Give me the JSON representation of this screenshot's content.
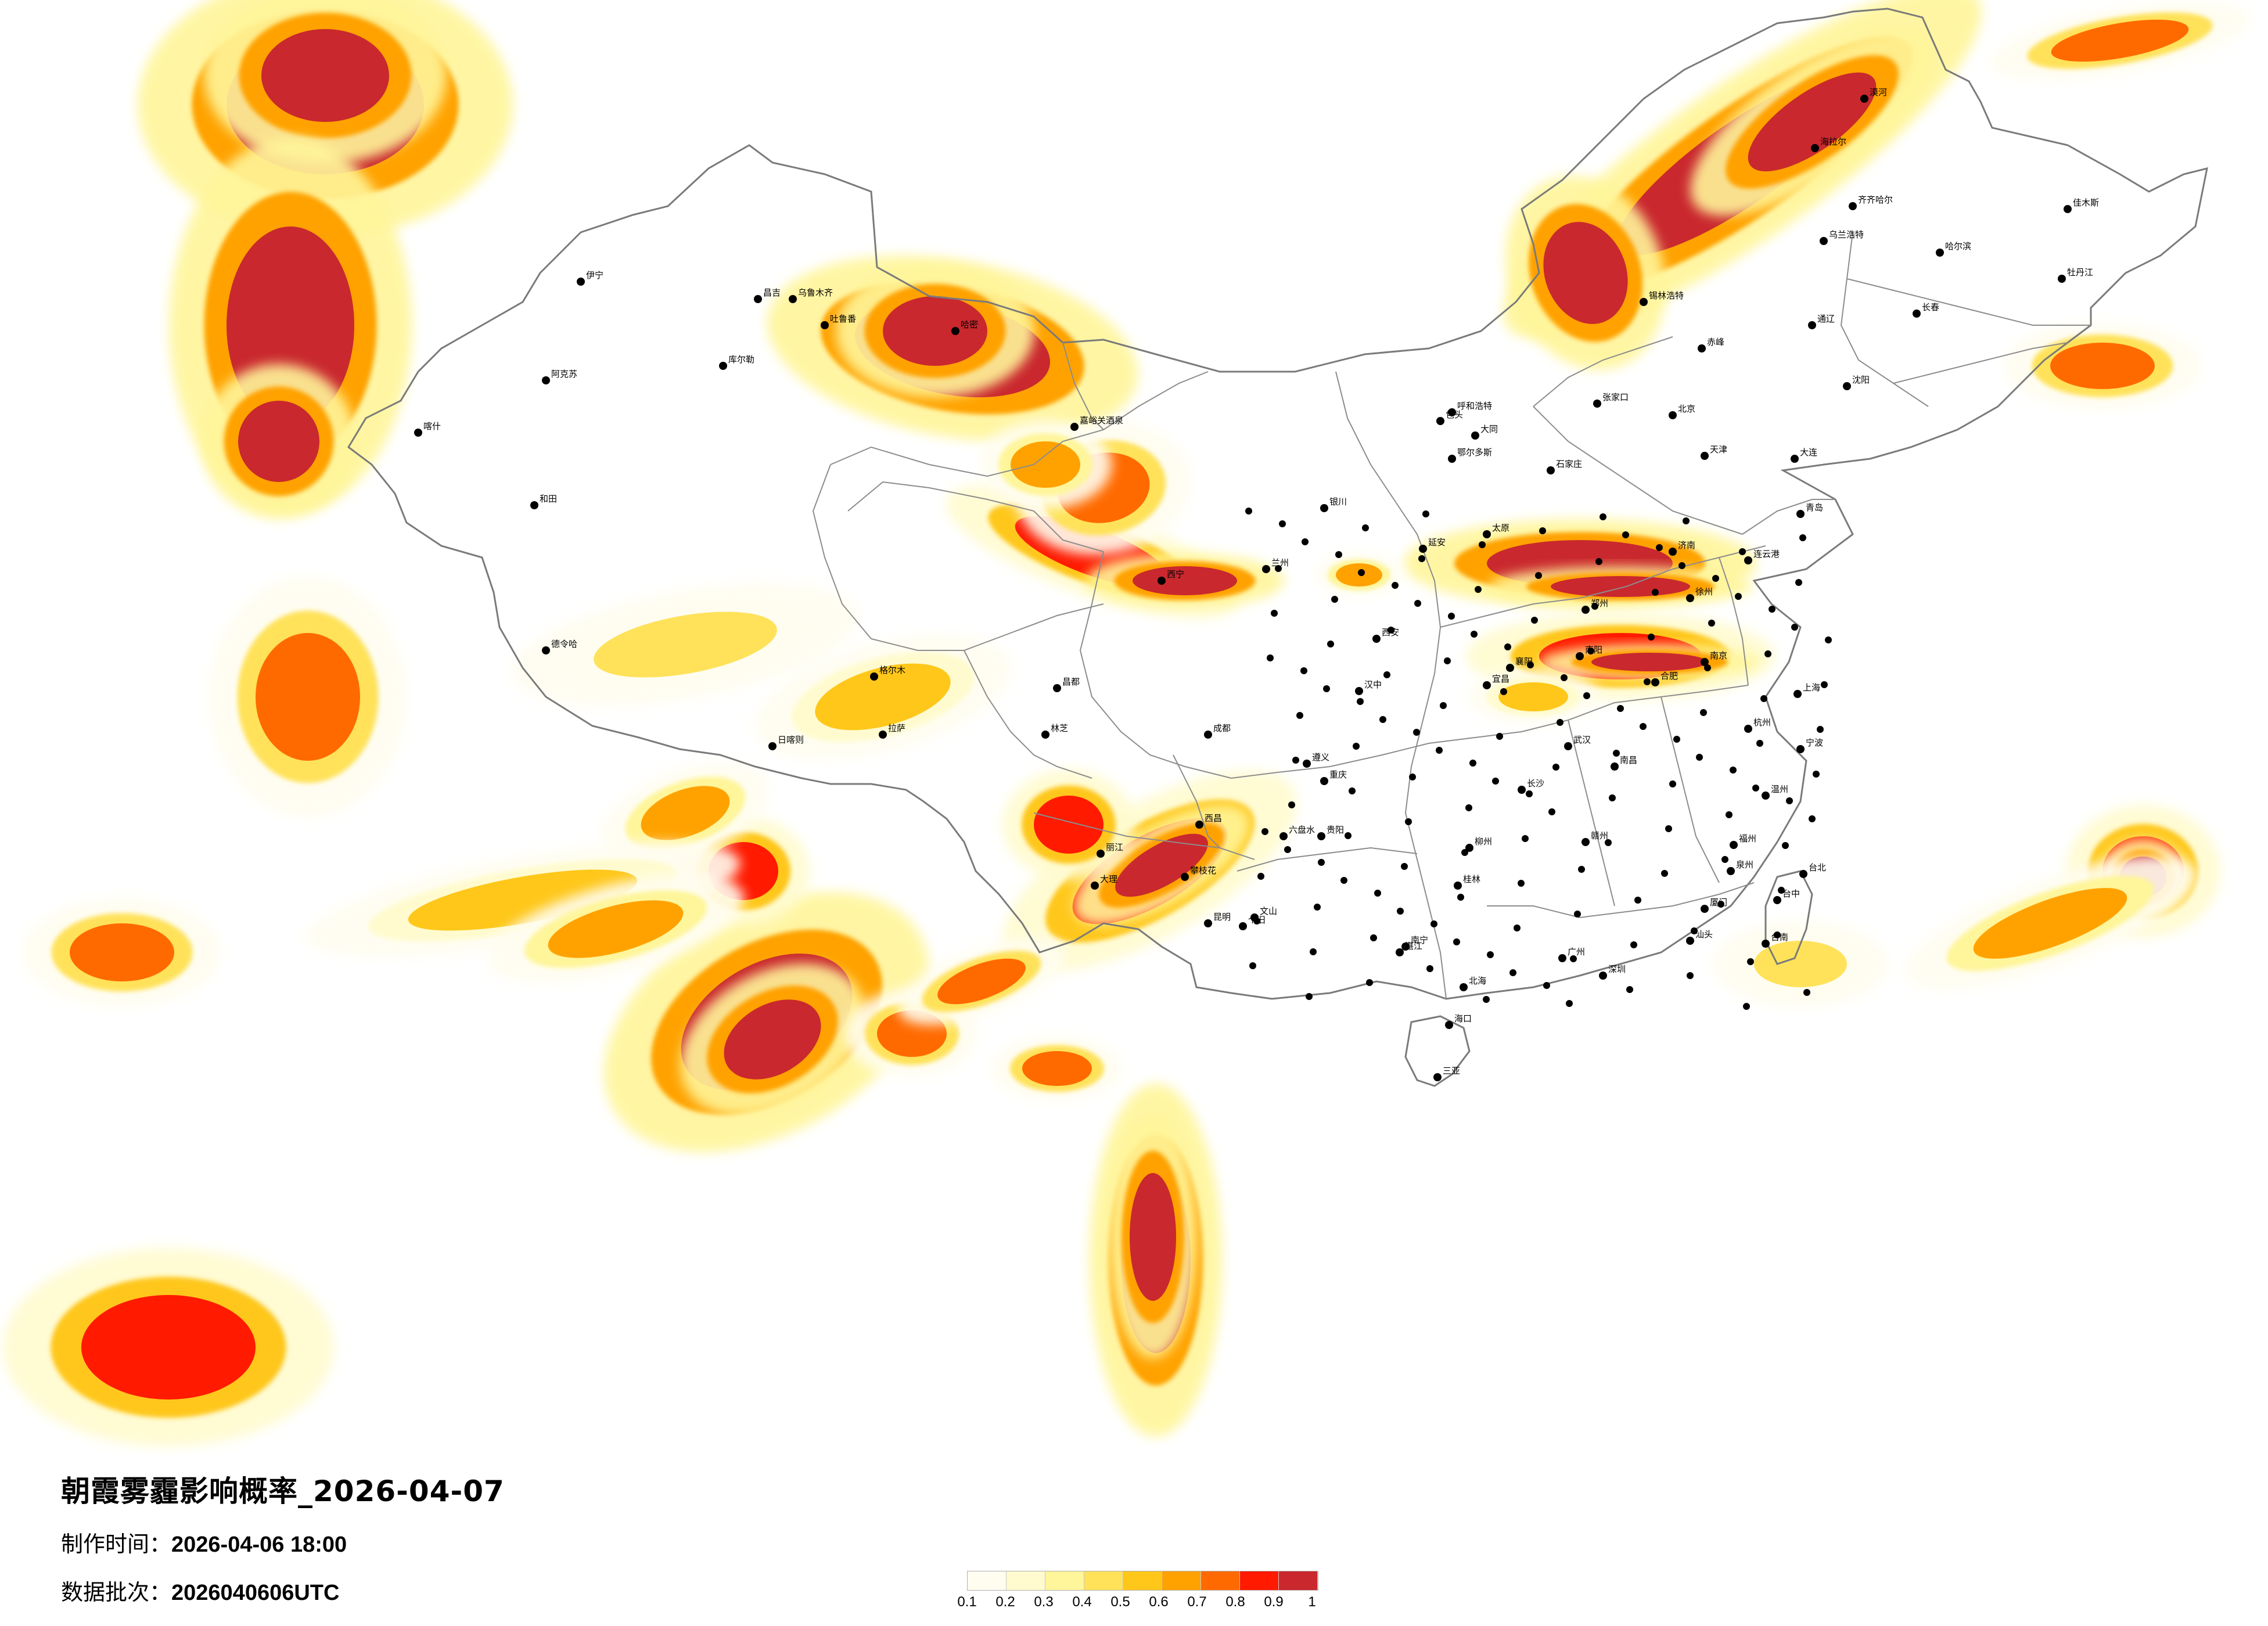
{
  "title": "朝霞雾霾影响概率_2026-04-07",
  "made_time_label": "制作时间：",
  "made_time_value": "2026-04-06 18:00",
  "batch_label": "数据批次：",
  "batch_value": "2026040606UTC",
  "legend": {
    "colors": [
      "#fffdf0",
      "#fffbcf",
      "#fff59a",
      "#ffe25a",
      "#ffc71a",
      "#ffa200",
      "#ff6a00",
      "#ff1a00",
      "#c9282e"
    ],
    "ticks": [
      "0.1",
      "0.2",
      "0.3",
      "0.4",
      "0.5",
      "0.6",
      "0.7",
      "0.8",
      "0.9",
      "1"
    ]
  },
  "cities": [
    {
      "name": "伊宁"
    },
    {
      "name": "昌吉"
    },
    {
      "name": "乌鲁木齐"
    },
    {
      "name": "吐鲁番"
    },
    {
      "name": "哈密"
    },
    {
      "name": "库尔勒"
    },
    {
      "name": "阿克苏"
    },
    {
      "name": "喀什"
    },
    {
      "name": "和田"
    },
    {
      "name": "嘉峪关酒泉"
    },
    {
      "name": "格尔木"
    },
    {
      "name": "德令哈"
    },
    {
      "name": "西宁"
    },
    {
      "name": "兰州"
    },
    {
      "name": "银川"
    },
    {
      "name": "呼和浩特"
    },
    {
      "name": "包头"
    },
    {
      "name": "鄂尔多斯"
    },
    {
      "name": "太原"
    },
    {
      "name": "石家庄"
    },
    {
      "name": "北京"
    },
    {
      "name": "天津"
    },
    {
      "name": "济南"
    },
    {
      "name": "青岛"
    },
    {
      "name": "郑州"
    },
    {
      "name": "西安"
    },
    {
      "name": "成都"
    },
    {
      "name": "重庆"
    },
    {
      "name": "贵阳"
    },
    {
      "name": "昆明"
    },
    {
      "name": "南宁"
    },
    {
      "name": "海口"
    },
    {
      "name": "广州"
    },
    {
      "name": "深圳"
    },
    {
      "name": "福州"
    },
    {
      "name": "厦门"
    },
    {
      "name": "台北"
    },
    {
      "name": "台中"
    },
    {
      "name": "台南"
    },
    {
      "name": "杭州"
    },
    {
      "name": "上海"
    },
    {
      "name": "南京"
    },
    {
      "name": "合肥"
    },
    {
      "name": "武汉"
    },
    {
      "name": "长沙"
    },
    {
      "name": "南昌"
    },
    {
      "name": "拉萨"
    },
    {
      "name": "日喀则"
    },
    {
      "name": "林芝"
    },
    {
      "name": "昌都"
    },
    {
      "name": "哈尔滨"
    },
    {
      "name": "长春"
    },
    {
      "name": "沈阳"
    },
    {
      "name": "大连"
    },
    {
      "name": "齐齐哈尔"
    },
    {
      "name": "海拉尔"
    },
    {
      "name": "漠河"
    },
    {
      "name": "锡林浩特"
    },
    {
      "name": "佳木斯"
    },
    {
      "name": "牡丹江"
    },
    {
      "name": "乌兰浩特"
    },
    {
      "name": "通辽"
    },
    {
      "name": "赤峰"
    },
    {
      "name": "张家口"
    },
    {
      "name": "大同"
    },
    {
      "name": "延安"
    },
    {
      "name": "汉中"
    },
    {
      "name": "宜昌"
    },
    {
      "name": "襄阳"
    },
    {
      "name": "南阳"
    },
    {
      "name": "徐州"
    },
    {
      "name": "连云港"
    },
    {
      "name": "温州"
    },
    {
      "name": "宁波"
    },
    {
      "name": "赣州"
    },
    {
      "name": "桂林"
    },
    {
      "name": "柳州"
    },
    {
      "name": "北海"
    },
    {
      "name": "三亚"
    },
    {
      "name": "西昌"
    },
    {
      "name": "攀枝花"
    },
    {
      "name": "大理"
    },
    {
      "name": "丽江"
    },
    {
      "name": "个旧"
    },
    {
      "name": "文山"
    },
    {
      "name": "遵义"
    },
    {
      "name": "六盘水"
    },
    {
      "name": "湛江"
    },
    {
      "name": "汕头"
    },
    {
      "name": "泉州"
    }
  ]
}
